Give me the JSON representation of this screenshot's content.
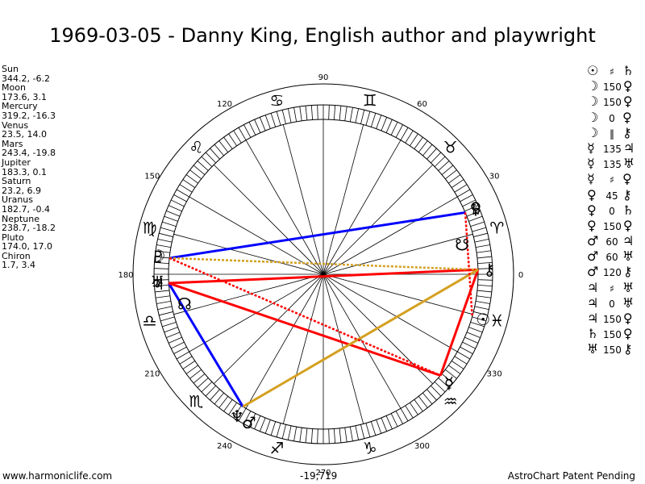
{
  "title": "1969-03-05 - Danny King, English author and playwright",
  "footer": {
    "website": "www.harmoniclife.com",
    "center_value": "-19,719",
    "patent": "AstroChart Patent Pending"
  },
  "planet_list": [
    {
      "name": "Sun",
      "coords": "344.2, -6.2"
    },
    {
      "name": "Moon",
      "coords": "173.6, 3.1"
    },
    {
      "name": "Mercury",
      "coords": "319.2, -16.3"
    },
    {
      "name": "Venus",
      "coords": "23.5, 14.0"
    },
    {
      "name": "Mars",
      "coords": "243.4, -19.8"
    },
    {
      "name": "Jupiter",
      "coords": "183.3, 0.1"
    },
    {
      "name": "Saturn",
      "coords": "23.2, 6.9"
    },
    {
      "name": "Uranus",
      "coords": "182.7, -0.4"
    },
    {
      "name": "Neptune",
      "coords": "238.7, -18.2"
    },
    {
      "name": "Pluto",
      "coords": "174.0, 17.0"
    },
    {
      "name": "Chiron",
      "coords": "1.7, 3.4"
    }
  ],
  "aspect_list": [
    {
      "a": "☉",
      "type": "♯",
      "b": "♄"
    },
    {
      "a": "☽",
      "type": "150",
      "b": "♀"
    },
    {
      "a": "☽",
      "type": "150",
      "b": "♀"
    },
    {
      "a": "☽",
      "type": "0",
      "b": "♀"
    },
    {
      "a": "☽",
      "type": "‖",
      "b": "⚷"
    },
    {
      "a": "☿",
      "type": "135",
      "b": "♃"
    },
    {
      "a": "☿",
      "type": "135",
      "b": "♅"
    },
    {
      "a": "☿",
      "type": "♯",
      "b": "♀"
    },
    {
      "a": "♀",
      "type": "45",
      "b": "⚷"
    },
    {
      "a": "♀",
      "type": "0",
      "b": "♄"
    },
    {
      "a": "♀",
      "type": "150",
      "b": "♀"
    },
    {
      "a": "♂",
      "type": "60",
      "b": "♃"
    },
    {
      "a": "♂",
      "type": "60",
      "b": "♅"
    },
    {
      "a": "♂",
      "type": "120",
      "b": "⚷"
    },
    {
      "a": "♃",
      "type": "♯",
      "b": "♅"
    },
    {
      "a": "♃",
      "type": "0",
      "b": "♅"
    },
    {
      "a": "♃",
      "type": "150",
      "b": "♀"
    },
    {
      "a": "♄",
      "type": "150",
      "b": "♀"
    },
    {
      "a": "♅",
      "type": "150",
      "b": "⚷"
    }
  ],
  "chart_data": {
    "type": "astrological-wheel",
    "title": "1969-03-05 - Danny King, English author and playwright",
    "degree_labels": [
      "0",
      "30",
      "60",
      "90",
      "120",
      "150",
      "180",
      "210",
      "240",
      "270",
      "300",
      "330"
    ],
    "zodiac_signs": [
      "♈",
      "♉",
      "♊",
      "♋",
      "♌",
      "♍",
      "♎",
      "♏",
      "♐",
      "♑",
      "♒",
      "♓"
    ],
    "planets": [
      {
        "glyph": "☉",
        "name": "Sun",
        "longitude": 344.2,
        "declination": -6.2
      },
      {
        "glyph": "☽",
        "name": "Moon",
        "longitude": 173.6,
        "declination": 3.1
      },
      {
        "glyph": "☿",
        "name": "Mercury",
        "longitude": 319.2,
        "declination": -16.3
      },
      {
        "glyph": "♀",
        "name": "Venus",
        "longitude": 23.5,
        "declination": 14.0
      },
      {
        "glyph": "♂",
        "name": "Mars",
        "longitude": 243.4,
        "declination": -19.8
      },
      {
        "glyph": "♃",
        "name": "Jupiter",
        "longitude": 183.3,
        "declination": 0.1
      },
      {
        "glyph": "♄",
        "name": "Saturn",
        "longitude": 23.2,
        "declination": 6.9
      },
      {
        "glyph": "♅",
        "name": "Uranus",
        "longitude": 182.7,
        "declination": -0.4
      },
      {
        "glyph": "♆",
        "name": "Neptune",
        "longitude": 238.7,
        "declination": -18.2
      },
      {
        "glyph": "♇",
        "name": "Pluto",
        "longitude": 174.0,
        "declination": 17.0
      },
      {
        "glyph": "⚷",
        "name": "Chiron",
        "longitude": 1.7,
        "declination": 3.4
      }
    ],
    "nodes": [
      {
        "glyph": "☊",
        "longitude": 192
      },
      {
        "glyph": "☋",
        "longitude": 12
      }
    ],
    "aspect_lines": [
      {
        "from": 23.5,
        "to": 174.0,
        "color": "#0000ff",
        "style": "solid"
      },
      {
        "from": 183.3,
        "to": 238.7,
        "color": "#0000ff",
        "style": "solid"
      },
      {
        "from": 183.3,
        "to": 1.7,
        "color": "#ff0000",
        "style": "solid"
      },
      {
        "from": 183.3,
        "to": 319.2,
        "color": "#ff0000",
        "style": "solid"
      },
      {
        "from": 319.2,
        "to": 1.7,
        "color": "#ff0000",
        "style": "solid"
      },
      {
        "from": 238.7,
        "to": 1.7,
        "color": "#d4a020",
        "style": "solid"
      },
      {
        "from": 174.0,
        "to": 1.7,
        "color": "#d4a020",
        "style": "dotted"
      },
      {
        "from": 174.0,
        "to": 319.2,
        "color": "#ff0000",
        "style": "dotted"
      },
      {
        "from": 23.5,
        "to": 344.2,
        "color": "#ff0000",
        "style": "dotted"
      }
    ]
  }
}
